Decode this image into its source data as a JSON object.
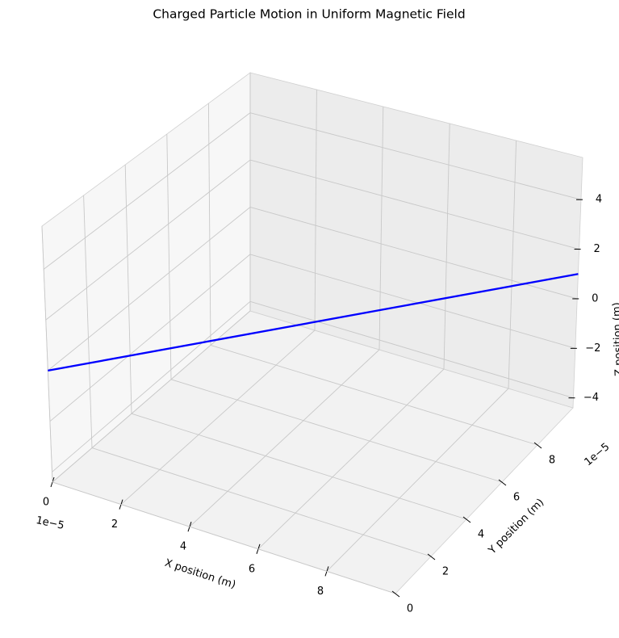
{
  "chart_data": {
    "type": "line3d",
    "title": "Charged Particle Motion in Uniform Magnetic Field",
    "xlabel": "X position (m)",
    "ylabel": "Y position (m)",
    "zlabel": "Z position (m)",
    "x_offset_label": "1e−5",
    "y_offset_label": "1e−5",
    "series": [
      {
        "color": "#0000ff",
        "x": [
          0,
          10
        ],
        "y": [
          0,
          10
        ],
        "z": [
          0,
          1
        ]
      }
    ],
    "xlim": [
      0,
      10
    ],
    "ylim": [
      0,
      10
    ],
    "zlim": [
      -4.4,
      5.7
    ],
    "xticks": [
      0,
      2,
      4,
      6,
      8
    ],
    "yticks": [
      0,
      2,
      4,
      6,
      8
    ],
    "zticks": [
      {
        "value": -4,
        "label": "−4"
      },
      {
        "value": -2,
        "label": "−2"
      },
      0,
      2,
      4
    ],
    "grid": true
  }
}
